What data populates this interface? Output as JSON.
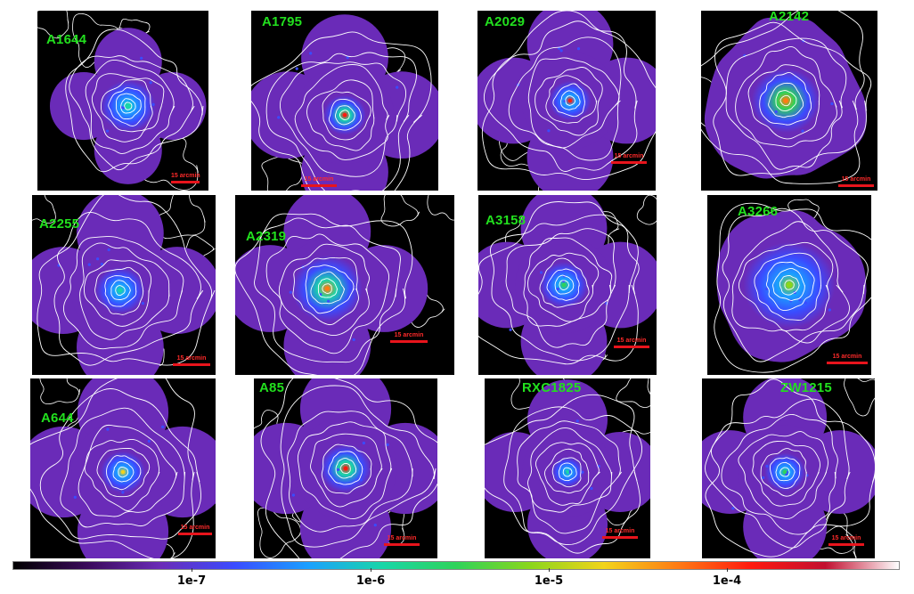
{
  "figure": {
    "panels": [
      {
        "label": "A1644",
        "scale_text": "15 arcmin"
      },
      {
        "label": "A1795",
        "scale_text": "15 arcmin"
      },
      {
        "label": "A2029",
        "scale_text": "15 arcmin"
      },
      {
        "label": "A2142",
        "scale_text": "15 arcmin"
      },
      {
        "label": "A2255",
        "scale_text": "15 arcmin"
      },
      {
        "label": "A2319",
        "scale_text": "15 arcmin"
      },
      {
        "label": "A3158",
        "scale_text": "15 arcmin"
      },
      {
        "label": "A3266",
        "scale_text": "15 arcmin"
      },
      {
        "label": "A644",
        "scale_text": "15 arcmin"
      },
      {
        "label": "A85",
        "scale_text": "15 arcmin"
      },
      {
        "label": "RXC1825",
        "scale_text": "15 arcmin"
      },
      {
        "label": "ZW1215",
        "scale_text": "15 arcmin"
      }
    ],
    "colorbar": {
      "scale": "log",
      "tick_labels": [
        "1e-7",
        "1e-6",
        "1e-5",
        "1e-4"
      ],
      "colors": [
        "#000000",
        "#3a0a5a",
        "#6a2bb8",
        "#3a4cff",
        "#1aa0ff",
        "#19d6a8",
        "#2fd35a",
        "#8ad61c",
        "#f2d41a",
        "#ff7b14",
        "#ff1a0e",
        "#c21030",
        "#ffffff"
      ]
    },
    "colors": {
      "label": "#22e01e",
      "scale_bar": "#e8141c",
      "contour": "#ffffff",
      "background": "#000000"
    }
  }
}
